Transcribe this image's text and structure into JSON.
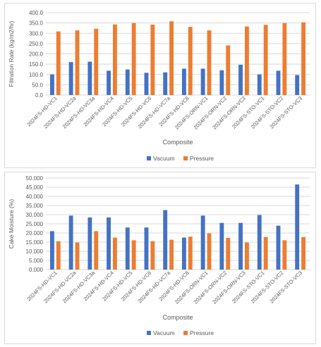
{
  "colors": {
    "vacuum": "#4472C4",
    "pressure": "#ED7D31",
    "grid": "#d9d9d9",
    "text": "#595959"
  },
  "chart_data": [
    {
      "type": "bar",
      "xlabel": "Composite",
      "ylabel": "Filtration Rate (kg/m2/hr)",
      "ylim": [
        0,
        400
      ],
      "yticks": [
        "0.0",
        "50.0",
        "100.0",
        "150.0",
        "200.0",
        "250.0",
        "300.0",
        "350.0",
        "400.0"
      ],
      "ytick_values": [
        0,
        50,
        100,
        150,
        200,
        250,
        300,
        350,
        400
      ],
      "grid": true,
      "legend_position": "bottom",
      "categories": [
        "2024FS-HD-VC1",
        "2024FS-HD-VC2a",
        "2024FS-HD-VC3a",
        "2024FS-HD-VC4",
        "2024FS-HD-VC5",
        "2024FS-HD-VC6",
        "2024FS-HD-VC7a",
        "2024FS-HD-VC8",
        "2024FS-ORN-VC1",
        "2024FS-ORN-VC2",
        "2024FS-ORN-VC3",
        "2024FS-STO-VC1",
        "2024FS-STO-VC2",
        "2024FS-STO-VC3"
      ],
      "series": [
        {
          "name": "Vacuum",
          "values": [
            100,
            160,
            162,
            118,
            124,
            108,
            110,
            128,
            128,
            120,
            147,
            100,
            118,
            97
          ]
        },
        {
          "name": "Pressure",
          "values": [
            309,
            314,
            322,
            343,
            350,
            342,
            358,
            331,
            314,
            241,
            333,
            341,
            350,
            353
          ]
        }
      ]
    },
    {
      "type": "bar",
      "xlabel": "Composite",
      "ylabel": "Cake Moisture (%)",
      "ylim": [
        0,
        50
      ],
      "yticks": [
        "0.000",
        "5.000",
        "10.000",
        "15.000",
        "20.000",
        "25.000",
        "30.000",
        "35.000",
        "40.000",
        "45.000",
        "50.000"
      ],
      "ytick_values": [
        0,
        5,
        10,
        15,
        20,
        25,
        30,
        35,
        40,
        45,
        50
      ],
      "grid": true,
      "legend_position": "bottom",
      "categories": [
        "2024FS-HD-VC1",
        "2024FS-HD-VC2a",
        "2024FS-HD-VC3a",
        "2024FS-HD-VC4",
        "2024FS-HD-VC5",
        "2024FS-HD-VC6",
        "2024FS-HD-VC7a",
        "2024FS-HD-VC8",
        "2024FS-ORN-VC1",
        "2024FS-ORN-VC2",
        "2024FS-ORN-VC3",
        "2024FS-STO-VC1",
        "2024FS-STO-VC2",
        "2024FS-STO-VC3"
      ],
      "series": [
        {
          "name": "Vacuum",
          "values": [
            21.0,
            29.5,
            28.5,
            28.5,
            23.0,
            23.0,
            32.5,
            17.5,
            29.5,
            25.5,
            25.5,
            29.8,
            24.0,
            46.5
          ]
        },
        {
          "name": "Pressure",
          "values": [
            15.5,
            14.8,
            21.0,
            17.5,
            16.0,
            15.5,
            16.3,
            18.0,
            19.8,
            17.3,
            14.8,
            17.8,
            16.0,
            17.8
          ]
        }
      ]
    }
  ]
}
